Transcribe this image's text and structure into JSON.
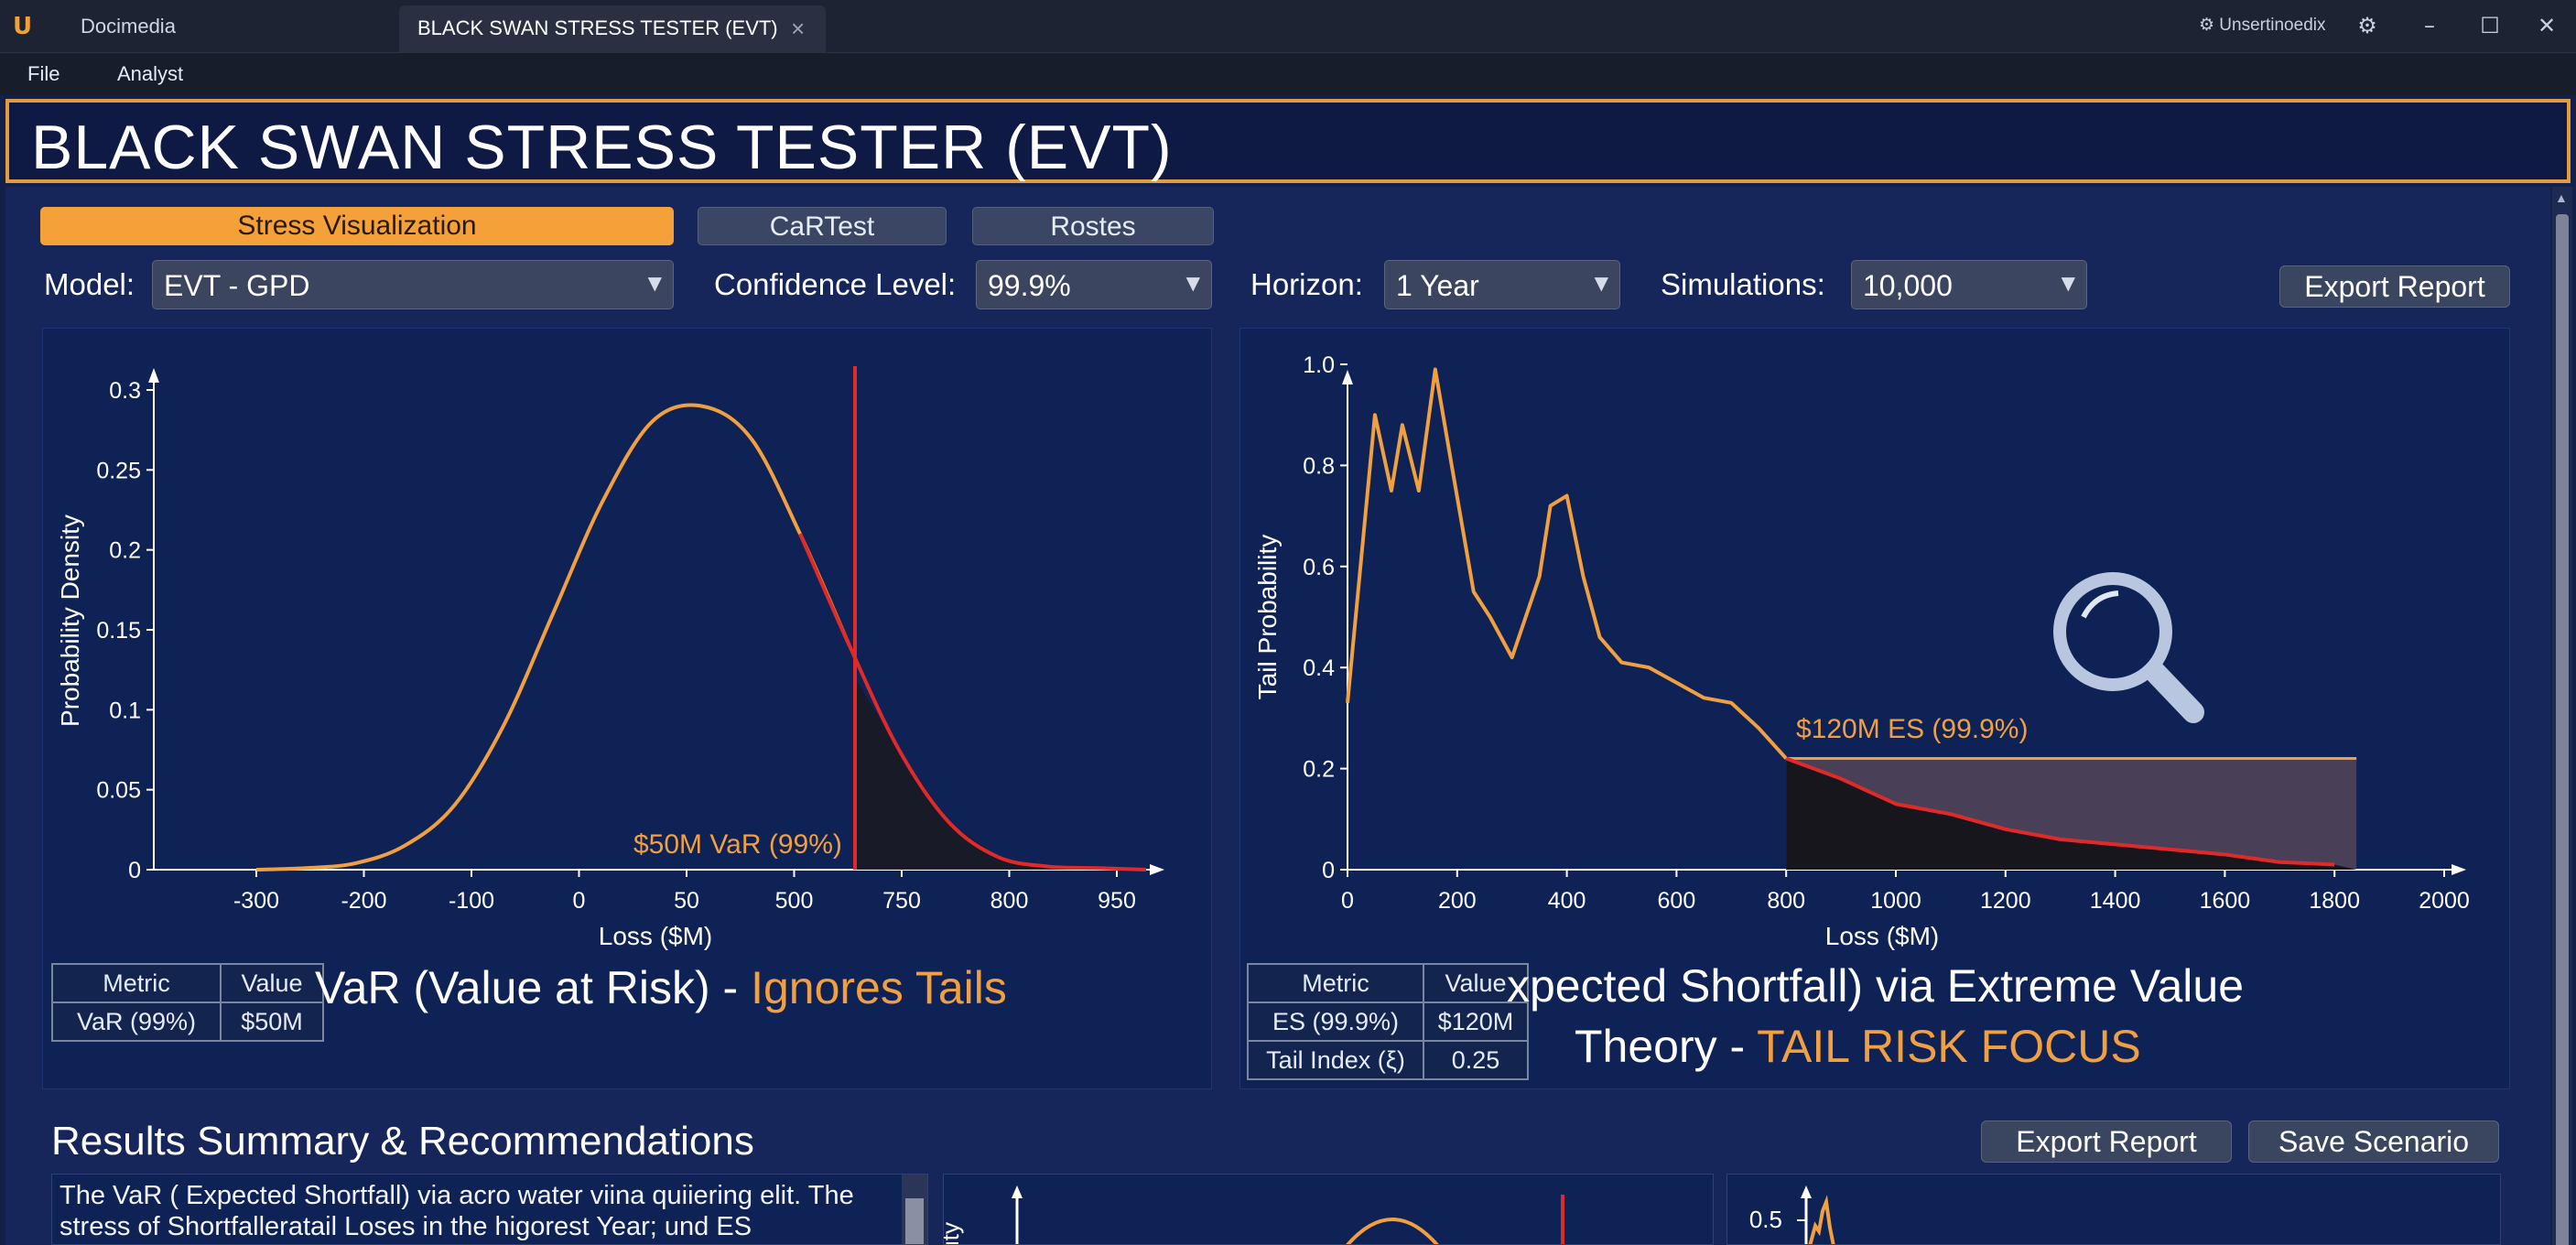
{
  "window": {
    "app_name": "Docimedia",
    "tab_title": "BLACK SWAN STRESS TESTER (EVT)",
    "user": "⚙ Unsertinoedix"
  },
  "menu": {
    "items": [
      "File",
      "Analyst"
    ]
  },
  "header": {
    "title": "BLACK SWAN STRESS TESTER (EVT)"
  },
  "view_tabs": [
    {
      "label": "Stress Visualization",
      "active": true
    },
    {
      "label": "CaRTest",
      "active": false
    },
    {
      "label": "Rostes",
      "active": false
    }
  ],
  "controls": {
    "model": {
      "label": "Model:",
      "value": "EVT - GPD"
    },
    "confidence": {
      "label": "Confidence Level:",
      "value": "99.9%"
    },
    "horizon": {
      "label": "Horizon:",
      "value": "1 Year"
    },
    "simulations": {
      "label": "Simulations:",
      "value": "10,000"
    },
    "export_label": "Export Report"
  },
  "left_chart": {
    "ylabel": "Probability Density",
    "xlabel": "Loss ($M)",
    "yticks": [
      "0",
      "0.05",
      "0.1",
      "0.15",
      "0.2",
      "0.25",
      "0.3"
    ],
    "xticks": [
      "-300",
      "-200",
      "-100",
      "0",
      "50",
      "500",
      "750",
      "800",
      "950"
    ],
    "var_label": "$50M VaR (99%)",
    "table": {
      "headers": [
        "Metric",
        "Value"
      ],
      "rows": [
        [
          "VaR (99%)",
          "$50M"
        ]
      ]
    },
    "caption_main": "VaR (Value at Risk) - ",
    "caption_accent": "Ignores Tails"
  },
  "right_chart": {
    "ylabel": "Tail Probability",
    "xlabel": "Loss ($M)",
    "yticks": [
      "0",
      "0.2",
      "0.4",
      "0.6",
      "0.8",
      "1.0"
    ],
    "xticks": [
      "0",
      "200",
      "400",
      "600",
      "800",
      "1000",
      "1200",
      "1400",
      "1600",
      "1800",
      "2000"
    ],
    "es_label": "$120M ES (99.9%)",
    "table": {
      "headers": [
        "Metric",
        "Value"
      ],
      "rows": [
        [
          "ES (99.9%)",
          "$120M"
        ],
        [
          "Tail Index (ξ)",
          "0.25"
        ]
      ]
    },
    "caption_line1": "xpected Shortfall) via Extreme Value",
    "caption_line2_main": "Theory - ",
    "caption_line2_accent": "TAIL RISK FOCUS"
  },
  "results": {
    "title": "Results Summary & Recommendations",
    "export_label": "Export Report",
    "save_label": "Save Scenario",
    "summary_text": "The VaR ( Expected Shortfall) via acro water viina quiiering elit. The stress of Shortfalleratail Loses in the higorest Year; und ES",
    "mini_left_ylabel": "ity",
    "mini_right_ytick": "0.5"
  },
  "colors": {
    "accent": "#f0a040",
    "var_line": "#e02a2a",
    "curve": "#f0a040",
    "background": "#0f2255"
  },
  "chart_data": [
    {
      "type": "line",
      "title": "",
      "xlabel": "Loss ($M)",
      "ylabel": "Probability Density",
      "ylim": [
        0,
        0.3
      ],
      "x_tick_labels": [
        "-300",
        "-200",
        "-100",
        "0",
        "50",
        "500",
        "750",
        "800",
        "950"
      ],
      "series": [
        {
          "values": [
            0,
            0.001,
            0.004,
            0.015,
            0.04,
            0.09,
            0.16,
            0.23,
            0.28,
            0.29,
            0.27,
            0.21,
            0.14,
            0.075,
            0.03,
            0.008,
            0.002,
            0.001,
            0
          ]
        }
      ],
      "annotations": [
        "$50M VaR (99%)"
      ]
    },
    {
      "type": "line",
      "title": "",
      "xlabel": "Loss ($M)",
      "ylabel": "Tail Probability",
      "xlim": [
        0,
        2000
      ],
      "ylim": [
        0,
        1.0
      ],
      "x": [
        0,
        50,
        80,
        100,
        130,
        160,
        190,
        230,
        260,
        300,
        350,
        370,
        400,
        430,
        460,
        500,
        550,
        600,
        650,
        700,
        750,
        800,
        900,
        1000,
        1100,
        1200,
        1300,
        1400,
        1500,
        1600,
        1700,
        1800
      ],
      "series": [
        {
          "values": [
            0.33,
            0.9,
            0.75,
            0.88,
            0.75,
            0.99,
            0.8,
            0.55,
            0.5,
            0.42,
            0.58,
            0.72,
            0.74,
            0.58,
            0.46,
            0.41,
            0.4,
            0.37,
            0.34,
            0.33,
            0.28,
            0.22,
            0.18,
            0.13,
            0.11,
            0.08,
            0.06,
            0.05,
            0.04,
            0.03,
            0.015,
            0.01
          ]
        }
      ],
      "annotations": [
        "$120M ES (99.9%)"
      ]
    }
  ]
}
